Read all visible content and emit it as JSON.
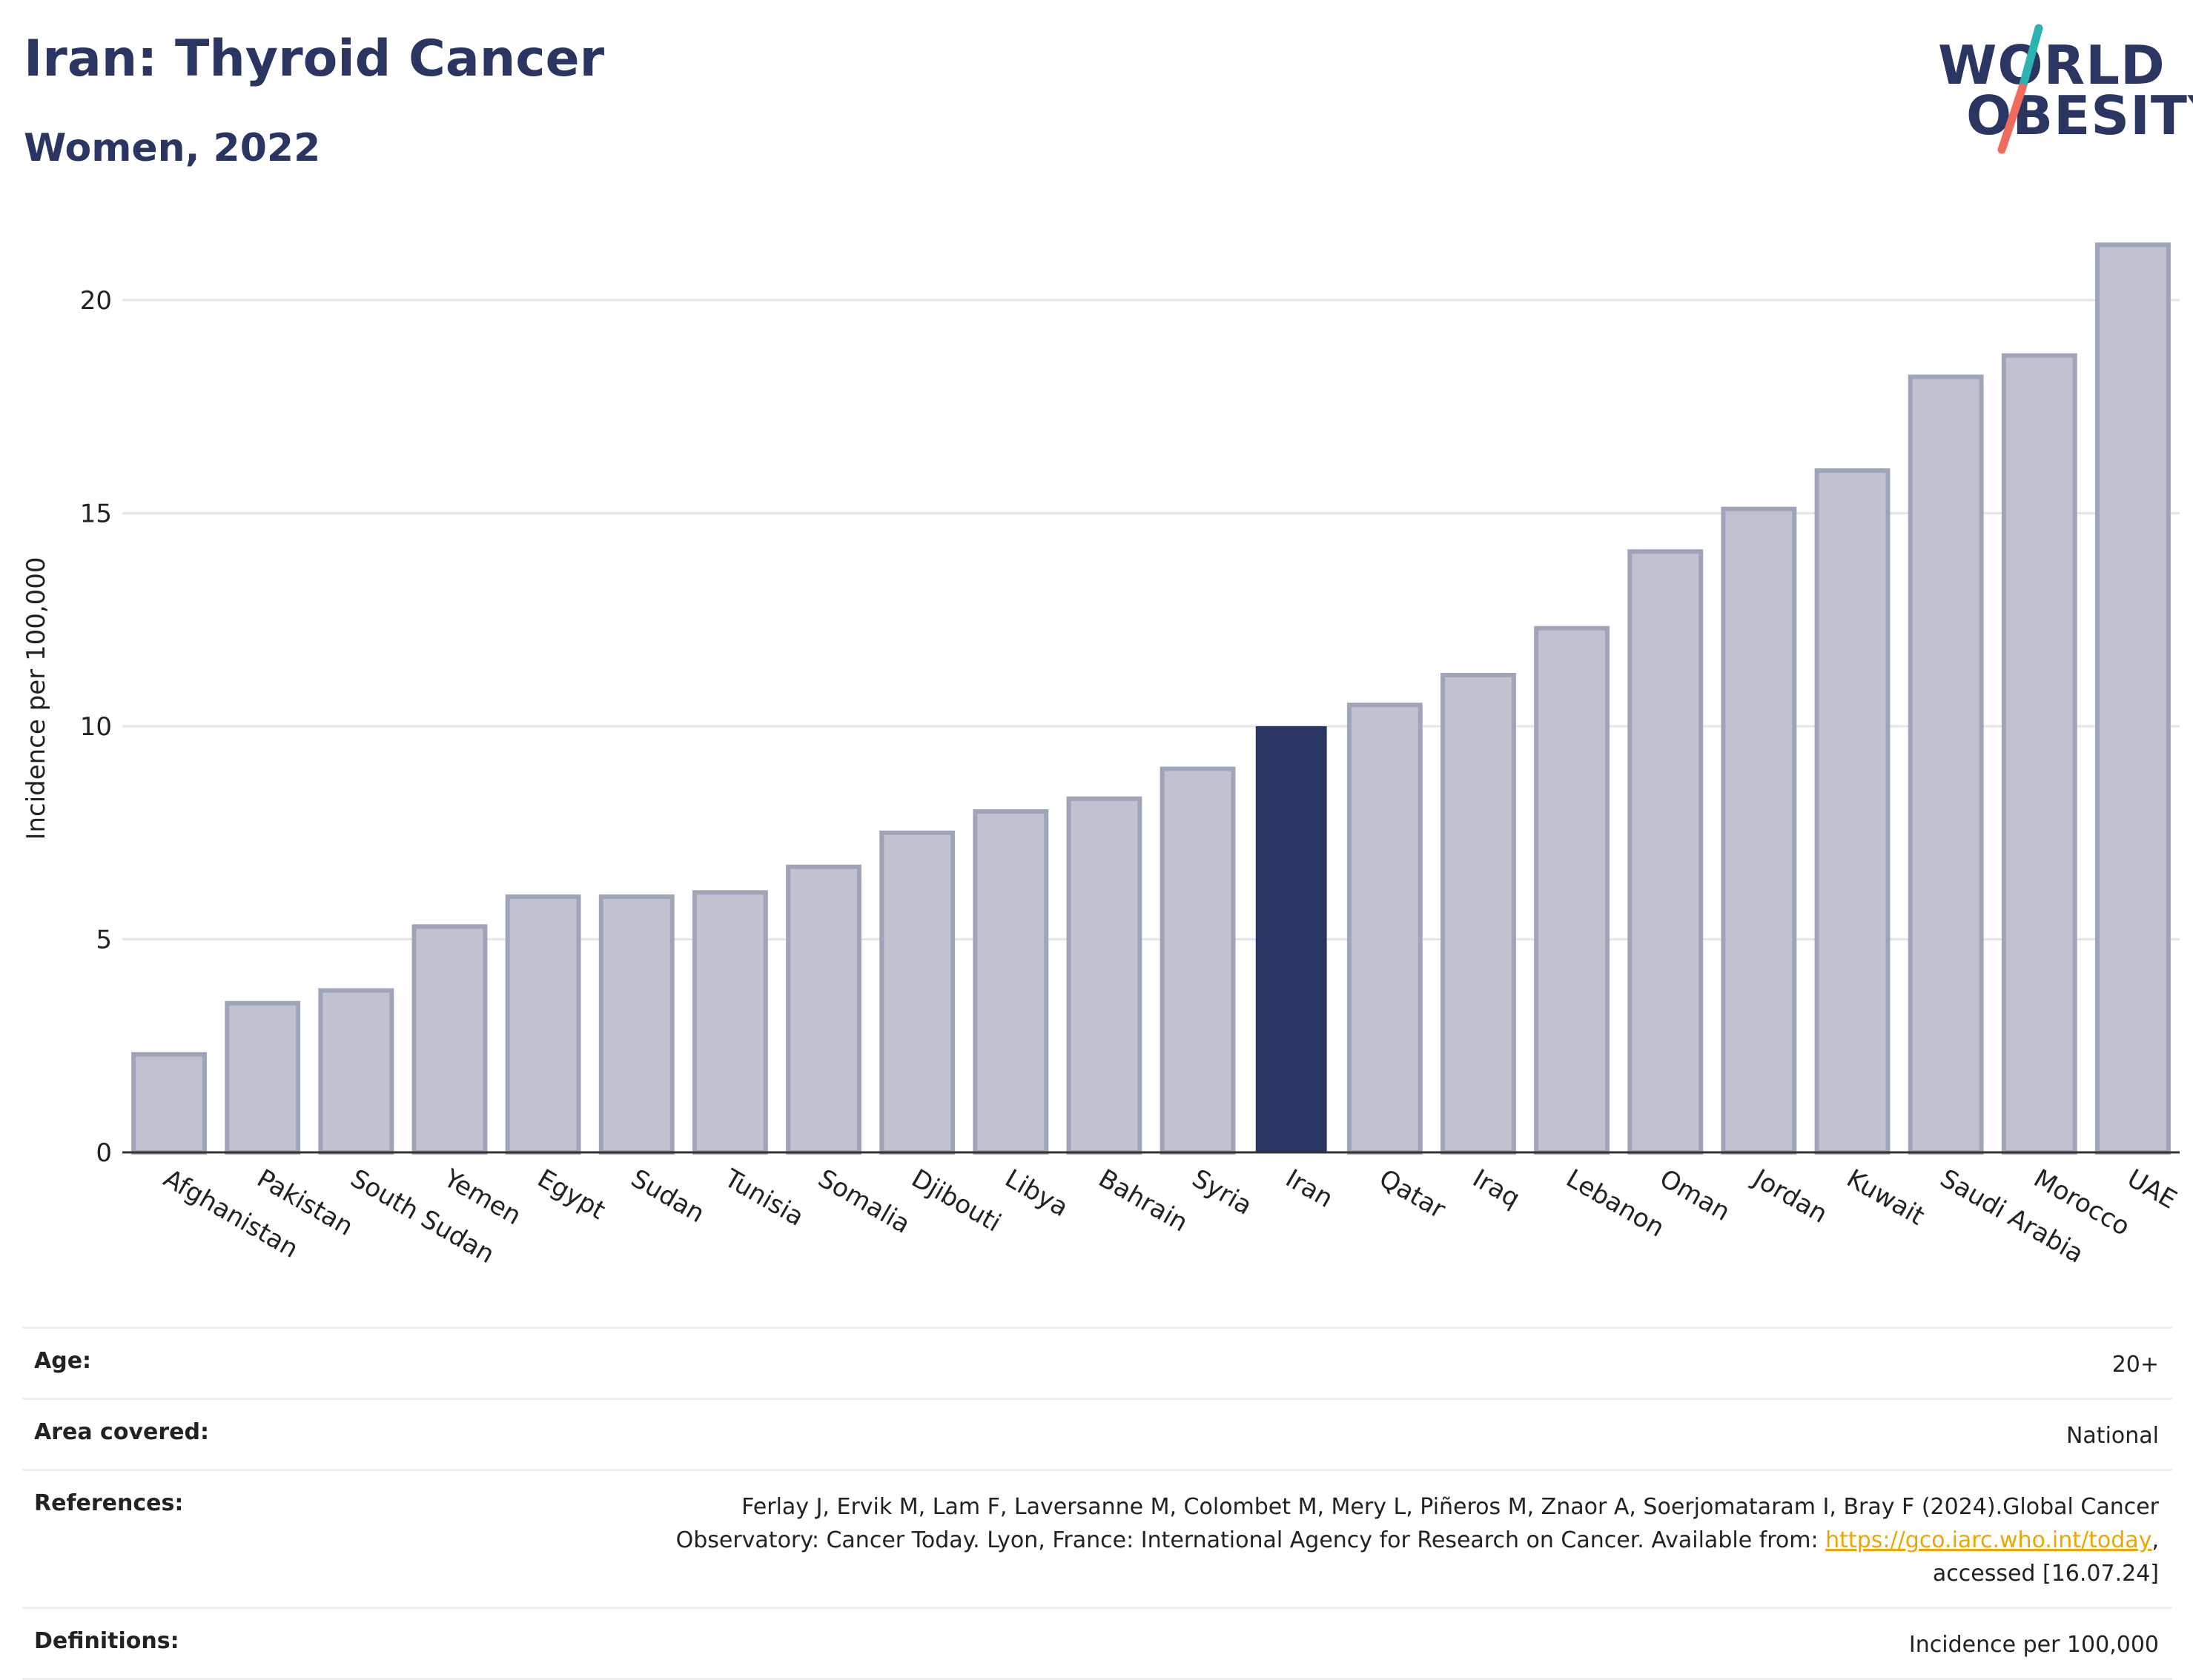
{
  "header": {
    "title": "Iran: Thyroid Cancer",
    "subtitle": "Women, 2022"
  },
  "logo": {
    "line1": "WORLD",
    "line2": "OBESITY",
    "accent_colors": [
      "#2ab3b1",
      "#ef6b5b"
    ]
  },
  "chart_data": {
    "type": "bar",
    "categories": [
      "Afghanistan",
      "Pakistan",
      "South Sudan",
      "Yemen",
      "Egypt",
      "Sudan",
      "Tunisia",
      "Somalia",
      "Djibouti",
      "Libya",
      "Bahrain",
      "Syria",
      "Iran",
      "Qatar",
      "Iraq",
      "Lebanon",
      "Oman",
      "Jordan",
      "Kuwait",
      "Saudi Arabia",
      "Morocco",
      "UAE"
    ],
    "values": [
      2.3,
      3.5,
      3.8,
      5.3,
      6.0,
      6.0,
      6.1,
      6.7,
      7.5,
      8.0,
      8.3,
      9.0,
      10.0,
      10.5,
      11.2,
      12.3,
      14.1,
      15.1,
      16.0,
      18.2,
      18.7,
      21.3
    ],
    "highlight": "Iran",
    "ylabel": "Incidence per 100,000",
    "ylim": [
      0,
      22
    ],
    "yticks": [
      0,
      5,
      10,
      15,
      20
    ],
    "grid": true,
    "colors": {
      "bar": "#c0c3cf",
      "bar_edge": "#9fa4b8",
      "highlight": "#2b3562"
    }
  },
  "info": {
    "rows": [
      {
        "label": "Age:",
        "value": "20+"
      },
      {
        "label": "Area covered:",
        "value": "National"
      },
      {
        "label": "Definitions:",
        "value": "Incidence per 100,000"
      }
    ],
    "references": {
      "label": "References:",
      "text_before": "Ferlay J, Ervik M, Lam F, Laversanne M, Colombet M, Mery L, Piñeros M, Znaor A, Soerjomataram I, Bray F (2024).Global Cancer Observatory: Cancer Today. Lyon, France: International Agency for Research on Cancer. Available from: ",
      "link": "https://gco.iarc.who.int/today",
      "text_after": ", accessed [16.07.24]"
    }
  }
}
